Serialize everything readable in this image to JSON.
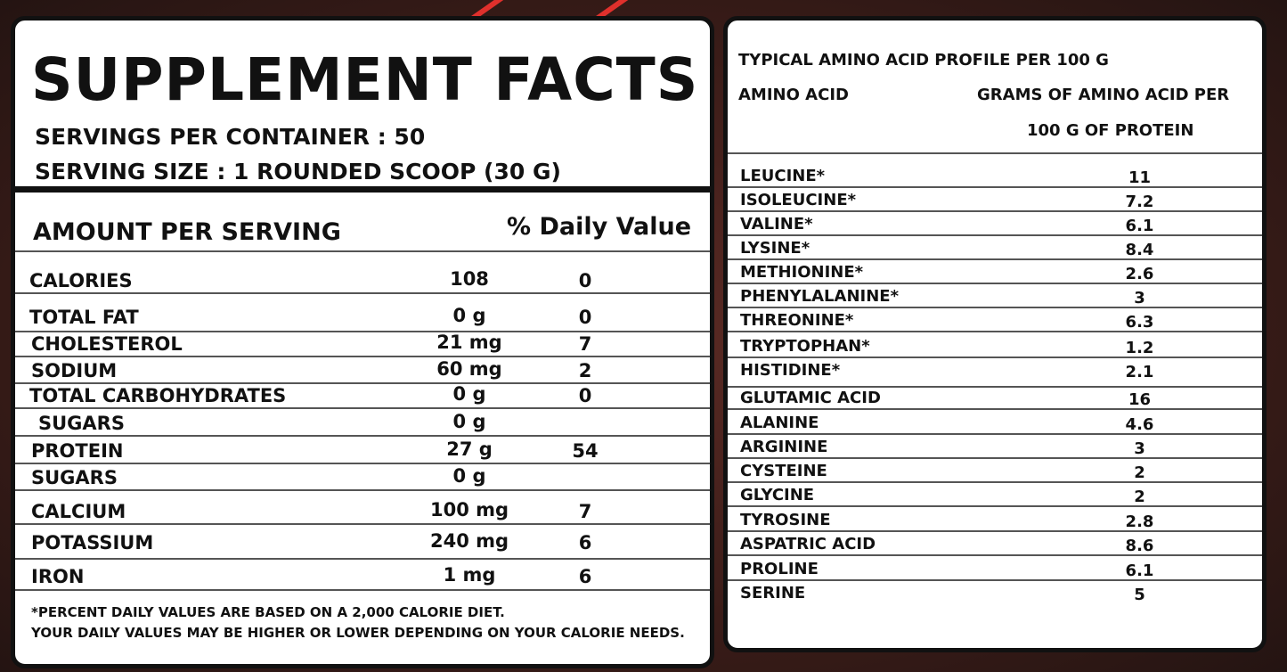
{
  "supplement_facts": {
    "title": "SUPPLEMENT FACTS",
    "servings_per_container": "SERVINGS PER CONTAINER : 50",
    "serving_size": "SERVING SIZE : 1 ROUNDED SCOOP (30 G)",
    "amount_header": "AMOUNT PER SERVING",
    "dv_header": "% Daily Value",
    "rows": [
      {
        "name": "CALORIES",
        "amount": "108",
        "dv": "0"
      },
      {
        "name": "TOTAL FAT",
        "amount": "0 g",
        "dv": "0"
      },
      {
        "name": "CHOLESTEROL",
        "amount": "21 mg",
        "dv": "7"
      },
      {
        "name": "SODIUM",
        "amount": "60 mg",
        "dv": "2"
      },
      {
        "name": "TOTAL CARBOHYDRATES",
        "amount": "0 g",
        "dv": "0"
      },
      {
        "name": "SUGARS",
        "amount": "0 g",
        "dv": ""
      },
      {
        "name": "PROTEIN",
        "amount": "27 g",
        "dv": "54"
      },
      {
        "name": "SUGARS",
        "amount": "0 g",
        "dv": ""
      },
      {
        "name": "CALCIUM",
        "amount": "100 mg",
        "dv": "7"
      },
      {
        "name": "POTASSIUM",
        "amount": "240 mg",
        "dv": "6"
      },
      {
        "name": "IRON",
        "amount": "1 mg",
        "dv": "6"
      }
    ],
    "footnote_1": "*PERCENT DAILY VALUES ARE BASED ON A 2,000 CALORIE DIET.",
    "footnote_2": "YOUR DAILY VALUES MAY BE HIGHER OR LOWER DEPENDING ON YOUR CALORIE NEEDS."
  },
  "amino_profile": {
    "title": "TYPICAL AMINO ACID PROFILE PER 100 G",
    "col_name": "AMINO ACID",
    "col_value_1": "GRAMS OF AMINO ACID PER",
    "col_value_2": "100 G OF PROTEIN",
    "rows": [
      {
        "name": "LEUCINE*",
        "value": "11"
      },
      {
        "name": "ISOLEUCINE*",
        "value": "7.2"
      },
      {
        "name": "VALINE*",
        "value": "6.1"
      },
      {
        "name": "LYSINE*",
        "value": "8.4"
      },
      {
        "name": "METHIONINE*",
        "value": "2.6"
      },
      {
        "name": "PHENYLALANINE*",
        "value": "3"
      },
      {
        "name": "THREONINE*",
        "value": "6.3"
      },
      {
        "name": "TRYPTOPHAN*",
        "value": "1.2"
      },
      {
        "name": "HISTIDINE*",
        "value": "2.1"
      },
      {
        "name": "GLUTAMIC ACID",
        "value": "16"
      },
      {
        "name": "ALANINE",
        "value": "4.6"
      },
      {
        "name": "ARGININE",
        "value": "3"
      },
      {
        "name": "CYSTEINE",
        "value": "2"
      },
      {
        "name": "GLYCINE",
        "value": "2"
      },
      {
        "name": "TYROSINE",
        "value": "2.8"
      },
      {
        "name": "ASPATRIC ACID",
        "value": "8.6"
      },
      {
        "name": "PROLINE",
        "value": "6.1"
      },
      {
        "name": "SERINE",
        "value": "5"
      }
    ]
  },
  "colors": {
    "background": "#3a1c18",
    "accent_stripe": "#e0302c",
    "panel": "#ffffff",
    "border": "#111111"
  }
}
